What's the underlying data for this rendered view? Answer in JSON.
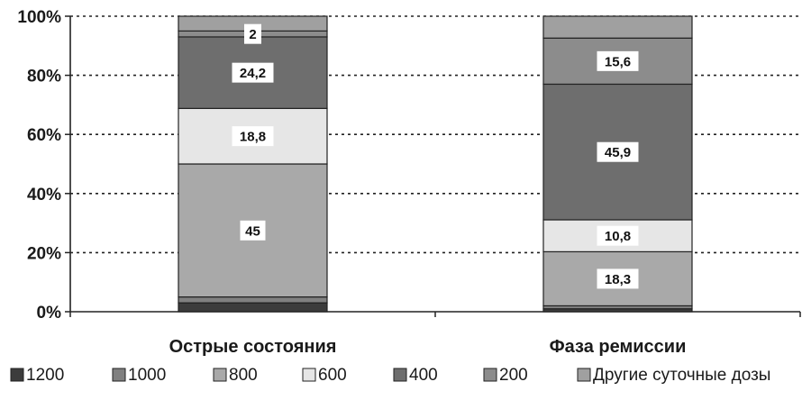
{
  "chart_data": {
    "type": "bar",
    "stacked": true,
    "percent": true,
    "categories": [
      "Острые состояния",
      "Фаза ремиссии"
    ],
    "ylim": [
      0,
      100
    ],
    "yticks": [
      "0%",
      "20%",
      "40%",
      "60%",
      "80%",
      "100%"
    ],
    "grid": "dotted horizontal",
    "legend_position": "bottom",
    "series": [
      {
        "name": "1200",
        "color": "#3c3c3c",
        "values": [
          3,
          1
        ],
        "labels": [
          "",
          ""
        ]
      },
      {
        "name": "1000",
        "color": "#808080",
        "values": [
          2,
          1
        ],
        "labels": [
          "",
          ""
        ]
      },
      {
        "name": "800",
        "color": "#a9a9a9",
        "values": [
          45,
          18.3
        ],
        "labels": [
          "45",
          "18,3"
        ]
      },
      {
        "name": "600",
        "color": "#e6e6e6",
        "values": [
          18.8,
          10.8
        ],
        "labels": [
          "18,8",
          "10,8"
        ]
      },
      {
        "name": "400",
        "color": "#6e6e6e",
        "values": [
          24.2,
          45.9
        ],
        "labels": [
          "24,2",
          "45,9"
        ]
      },
      {
        "name": "200",
        "color": "#8c8c8c",
        "values": [
          2,
          15.6
        ],
        "labels": [
          "2",
          "15,6"
        ]
      },
      {
        "name": "Другие суточные дозы",
        "color": "#a0a0a0",
        "values": [
          5,
          7.4
        ],
        "labels": [
          "",
          ""
        ]
      }
    ]
  }
}
